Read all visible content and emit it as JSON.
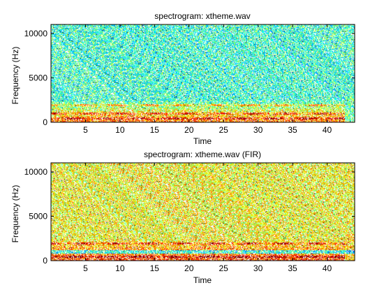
{
  "chart_data": [
    {
      "type": "heatmap",
      "title": "spectrogram: xtheme.wav",
      "xlabel": "Time",
      "ylabel": "Frequency (Hz)",
      "xlim": [
        0,
        44
      ],
      "ylim": [
        0,
        11025
      ],
      "xticks": [
        5,
        10,
        15,
        20,
        25,
        30,
        35,
        40
      ],
      "yticks": [
        0,
        5000,
        10000
      ],
      "colormap": "jet",
      "background_level": "cyan-green",
      "band_description": {
        "low_freq_hot_band_hz": [
          0,
          2500
        ],
        "strong_tones_hz": [
          500,
          1000,
          2000
        ],
        "signal_end_time": 42.5
      }
    },
    {
      "type": "heatmap",
      "title": "spectrogram: xtheme.wav (FIR)",
      "xlabel": "Time",
      "ylabel": "Frequency (Hz)",
      "xlim": [
        0,
        44
      ],
      "ylim": [
        0,
        11025
      ],
      "xticks": [
        5,
        10,
        15,
        20,
        25,
        30,
        35,
        40
      ],
      "yticks": [
        0,
        5000,
        10000
      ],
      "colormap": "jet",
      "background_level": "yellow",
      "band_description": {
        "low_freq_hot_band_hz": [
          0,
          2500
        ],
        "strong_tones_hz": [
          500,
          2000
        ],
        "notch_band_hz": [
          800,
          1200
        ],
        "signal_end_time": 42.5
      }
    }
  ]
}
